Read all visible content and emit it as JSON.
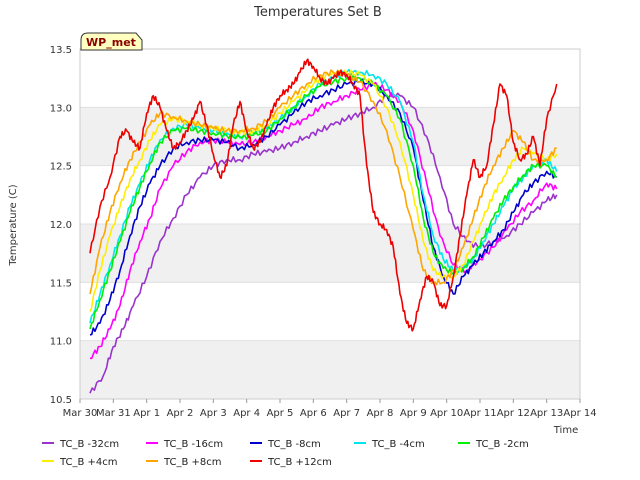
{
  "chart_data": {
    "type": "line",
    "title": "Temperatures Set B",
    "xlabel": "Time",
    "ylabel": "Temperature (C)",
    "badge": "WP_met",
    "ylim": [
      10.5,
      13.5
    ],
    "xlim": [
      0,
      15
    ],
    "grid": "horizontal bands",
    "legend": "bottom",
    "x_ticks": [
      {
        "pos": 0,
        "label": "Mar 30"
      },
      {
        "pos": 1,
        "label": "Mar 31"
      },
      {
        "pos": 2,
        "label": "Apr 1"
      },
      {
        "pos": 3,
        "label": "Apr 2"
      },
      {
        "pos": 4,
        "label": "Apr 3"
      },
      {
        "pos": 5,
        "label": "Apr 4"
      },
      {
        "pos": 6,
        "label": "Apr 5"
      },
      {
        "pos": 7,
        "label": "Apr 6"
      },
      {
        "pos": 8,
        "label": "Apr 7"
      },
      {
        "pos": 9,
        "label": "Apr 8"
      },
      {
        "pos": 10,
        "label": "Apr 9"
      },
      {
        "pos": 11,
        "label": "Apr 10"
      },
      {
        "pos": 12,
        "label": "Apr 11"
      },
      {
        "pos": 13,
        "label": "Apr 12"
      },
      {
        "pos": 14,
        "label": "Apr 13"
      },
      {
        "pos": 15,
        "label": "Apr 14"
      }
    ],
    "y_ticks": [
      10.5,
      11.0,
      11.5,
      12.0,
      12.5,
      13.0,
      13.5
    ],
    "series": [
      {
        "name": "TC_B -32cm",
        "color": "#9a32cd",
        "x": [
          0.3,
          0.7,
          1.0,
          1.3,
          1.6,
          2.0,
          2.4,
          2.8,
          3.2,
          3.6,
          4.0,
          4.4,
          4.8,
          5.2,
          5.6,
          6.0,
          6.4,
          6.8,
          7.2,
          7.6,
          8.0,
          8.4,
          8.8,
          9.2,
          9.6,
          10.0,
          10.4,
          10.8,
          11.2,
          11.6,
          12.0,
          12.4,
          12.8,
          13.2,
          13.6,
          14.0,
          14.3
        ],
        "y": [
          10.55,
          10.7,
          10.95,
          11.1,
          11.3,
          11.55,
          11.85,
          12.05,
          12.25,
          12.4,
          12.5,
          12.55,
          12.55,
          12.6,
          12.62,
          12.65,
          12.7,
          12.75,
          12.8,
          12.85,
          12.9,
          12.95,
          13.0,
          13.1,
          13.1,
          13.0,
          12.75,
          12.4,
          12.0,
          11.85,
          11.8,
          11.85,
          11.9,
          12.0,
          12.1,
          12.2,
          12.25
        ]
      },
      {
        "name": "TC_B -16cm",
        "color": "#ff00ff",
        "x": [
          0.3,
          0.6,
          0.9,
          1.2,
          1.5,
          1.8,
          2.1,
          2.4,
          2.8,
          3.2,
          3.6,
          4.0,
          4.4,
          4.8,
          5.2,
          5.6,
          6.0,
          6.4,
          6.8,
          7.2,
          7.6,
          8.0,
          8.4,
          8.8,
          9.2,
          9.6,
          10.0,
          10.4,
          10.8,
          11.2,
          11.6,
          12.0,
          12.4,
          12.8,
          13.2,
          13.6,
          14.0,
          14.3
        ],
        "y": [
          10.85,
          10.95,
          11.1,
          11.3,
          11.6,
          11.85,
          12.05,
          12.3,
          12.5,
          12.62,
          12.7,
          12.72,
          12.7,
          12.68,
          12.7,
          12.75,
          12.8,
          12.85,
          12.9,
          13.0,
          13.05,
          13.1,
          13.15,
          13.2,
          13.15,
          13.05,
          12.8,
          12.35,
          11.9,
          11.65,
          11.6,
          11.7,
          11.8,
          11.95,
          12.1,
          12.2,
          12.35,
          12.3
        ]
      },
      {
        "name": "TC_B -8cm",
        "color": "#0000cd",
        "x": [
          0.3,
          0.6,
          0.9,
          1.2,
          1.5,
          1.8,
          2.1,
          2.4,
          2.8,
          3.2,
          3.6,
          4.0,
          4.4,
          4.8,
          5.2,
          5.6,
          6.0,
          6.4,
          6.8,
          7.2,
          7.6,
          8.0,
          8.4,
          8.8,
          9.2,
          9.6,
          10.0,
          10.3,
          10.6,
          10.9,
          11.2,
          11.5,
          11.8,
          12.1,
          12.4,
          12.7,
          13.0,
          13.3,
          13.6,
          14.0,
          14.3
        ],
        "y": [
          11.05,
          11.15,
          11.35,
          11.6,
          11.9,
          12.15,
          12.35,
          12.5,
          12.65,
          12.7,
          12.72,
          12.72,
          12.7,
          12.65,
          12.68,
          12.75,
          12.85,
          12.95,
          13.05,
          13.1,
          13.15,
          13.2,
          13.22,
          13.2,
          13.1,
          12.95,
          12.65,
          12.2,
          11.8,
          11.55,
          11.4,
          11.55,
          11.65,
          11.75,
          11.85,
          11.95,
          12.1,
          12.25,
          12.35,
          12.45,
          12.4
        ]
      },
      {
        "name": "TC_B -4cm",
        "color": "#00e5ee",
        "x": [
          0.3,
          0.6,
          0.9,
          1.2,
          1.5,
          1.8,
          2.1,
          2.4,
          2.8,
          3.2,
          3.6,
          4.0,
          4.4,
          4.8,
          5.2,
          5.6,
          6.0,
          6.4,
          6.8,
          7.2,
          7.6,
          8.0,
          8.4,
          8.8,
          9.2,
          9.6,
          10.0,
          10.3,
          10.6,
          10.9,
          11.2,
          11.5,
          11.8,
          12.1,
          12.4,
          12.7,
          13.0,
          13.3,
          13.6,
          14.0,
          14.3
        ],
        "y": [
          11.15,
          11.4,
          11.65,
          11.9,
          12.15,
          12.35,
          12.55,
          12.72,
          12.82,
          12.85,
          12.82,
          12.8,
          12.78,
          12.75,
          12.78,
          12.82,
          12.9,
          13.0,
          13.1,
          13.2,
          13.25,
          13.3,
          13.3,
          13.28,
          13.2,
          13.05,
          12.7,
          12.25,
          11.9,
          11.7,
          11.6,
          11.62,
          11.7,
          11.85,
          12.0,
          12.15,
          12.3,
          12.4,
          12.5,
          12.55,
          12.45
        ]
      },
      {
        "name": "TC_B -2cm",
        "color": "#00ee00",
        "x": [
          0.3,
          0.6,
          0.9,
          1.2,
          1.5,
          1.8,
          2.1,
          2.4,
          2.8,
          3.2,
          3.6,
          4.0,
          4.4,
          4.8,
          5.2,
          5.6,
          6.0,
          6.4,
          6.8,
          7.2,
          7.6,
          8.0,
          8.4,
          8.8,
          9.2,
          9.6,
          10.0,
          10.3,
          10.6,
          10.9,
          11.2,
          11.5,
          11.8,
          12.1,
          12.4,
          12.7,
          13.0,
          13.3,
          13.6,
          14.0,
          14.3
        ],
        "y": [
          11.1,
          11.35,
          11.6,
          11.85,
          12.1,
          12.32,
          12.52,
          12.7,
          12.8,
          12.82,
          12.8,
          12.78,
          12.76,
          12.74,
          12.76,
          12.8,
          12.9,
          13.0,
          13.1,
          13.18,
          13.22,
          13.25,
          13.25,
          13.2,
          13.1,
          12.9,
          12.5,
          12.05,
          11.75,
          11.62,
          11.58,
          11.62,
          11.72,
          11.88,
          12.05,
          12.2,
          12.32,
          12.42,
          12.5,
          12.5,
          12.4
        ]
      },
      {
        "name": "TC_B +4cm",
        "color": "#ffee00",
        "x": [
          0.3,
          0.6,
          0.9,
          1.2,
          1.5,
          1.8,
          2.1,
          2.4,
          2.8,
          3.2,
          3.6,
          4.0,
          4.4,
          4.8,
          5.2,
          5.6,
          6.0,
          6.4,
          6.8,
          7.2,
          7.6,
          8.0,
          8.4,
          8.8,
          9.2,
          9.6,
          10.0,
          10.3,
          10.6,
          10.9,
          11.2,
          11.5,
          11.8,
          12.1,
          12.4,
          12.7,
          13.0,
          13.3,
          13.6,
          14.0,
          14.3
        ],
        "y": [
          11.25,
          11.6,
          11.9,
          12.15,
          12.38,
          12.55,
          12.72,
          12.85,
          12.9,
          12.88,
          12.85,
          12.82,
          12.8,
          12.78,
          12.8,
          12.85,
          12.95,
          13.05,
          13.15,
          13.25,
          13.3,
          13.3,
          13.28,
          13.2,
          13.0,
          12.7,
          12.25,
          11.85,
          11.6,
          11.55,
          11.55,
          11.65,
          11.85,
          12.05,
          12.25,
          12.4,
          12.55,
          12.65,
          12.6,
          12.55,
          12.6
        ]
      },
      {
        "name": "TC_B +8cm",
        "color": "#ffa500",
        "x": [
          0.3,
          0.6,
          0.9,
          1.2,
          1.5,
          1.8,
          2.1,
          2.4,
          2.8,
          3.2,
          3.6,
          4.0,
          4.4,
          4.8,
          5.2,
          5.6,
          6.0,
          6.4,
          6.8,
          7.2,
          7.6,
          8.0,
          8.4,
          8.8,
          9.2,
          9.6,
          10.0,
          10.3,
          10.6,
          10.9,
          11.2,
          11.5,
          11.8,
          12.1,
          12.4,
          12.7,
          13.0,
          13.3,
          13.6,
          14.0,
          14.3
        ],
        "y": [
          11.4,
          11.8,
          12.1,
          12.35,
          12.55,
          12.7,
          12.85,
          12.95,
          12.92,
          12.88,
          12.85,
          12.82,
          12.8,
          12.8,
          12.82,
          12.88,
          13.0,
          13.1,
          13.2,
          13.28,
          13.3,
          13.28,
          13.22,
          13.05,
          12.8,
          12.4,
          11.95,
          11.6,
          11.5,
          11.5,
          11.6,
          11.8,
          12.05,
          12.3,
          12.5,
          12.65,
          12.8,
          12.7,
          12.55,
          12.55,
          12.65
        ]
      },
      {
        "name": "TC_B +12cm",
        "color": "#ee0000",
        "x": [
          0.3,
          0.6,
          0.9,
          1.2,
          1.4,
          1.6,
          1.8,
          2.0,
          2.2,
          2.4,
          2.6,
          2.8,
          3.0,
          3.2,
          3.4,
          3.6,
          3.8,
          4.0,
          4.2,
          4.4,
          4.6,
          4.8,
          5.0,
          5.2,
          5.4,
          5.6,
          5.8,
          6.0,
          6.2,
          6.4,
          6.6,
          6.8,
          7.0,
          7.2,
          7.4,
          7.6,
          7.8,
          8.0,
          8.2,
          8.4,
          8.6,
          8.8,
          9.0,
          9.2,
          9.4,
          9.6,
          9.8,
          10.0,
          10.2,
          10.4,
          10.6,
          10.8,
          11.0,
          11.2,
          11.4,
          11.6,
          11.8,
          12.0,
          12.2,
          12.4,
          12.6,
          12.8,
          13.0,
          13.2,
          13.4,
          13.6,
          13.8,
          14.0,
          14.3
        ],
        "y": [
          11.75,
          12.15,
          12.4,
          12.75,
          12.8,
          12.7,
          12.65,
          12.95,
          13.1,
          13.0,
          12.8,
          12.65,
          12.7,
          12.8,
          12.9,
          13.05,
          12.85,
          12.6,
          12.4,
          12.5,
          12.85,
          13.05,
          12.8,
          12.65,
          12.7,
          12.85,
          13.0,
          13.1,
          13.15,
          13.2,
          13.3,
          13.4,
          13.35,
          13.25,
          13.2,
          13.25,
          13.3,
          13.28,
          13.2,
          13.1,
          12.5,
          12.1,
          12.0,
          11.95,
          11.8,
          11.4,
          11.15,
          11.1,
          11.35,
          11.55,
          11.5,
          11.3,
          11.3,
          11.55,
          11.9,
          12.25,
          12.55,
          12.4,
          12.5,
          12.85,
          13.2,
          13.1,
          12.7,
          12.55,
          12.6,
          12.75,
          12.5,
          12.9,
          13.2
        ]
      }
    ]
  }
}
